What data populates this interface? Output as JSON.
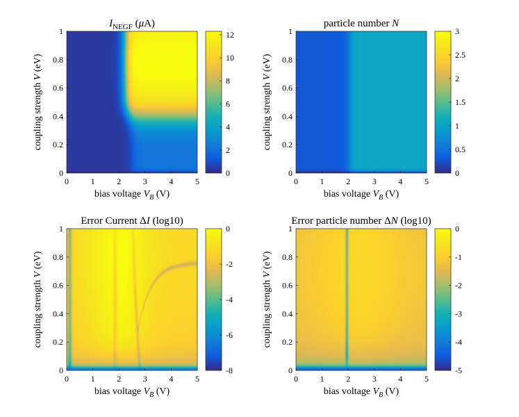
{
  "chart_data": [
    {
      "type": "heatmap",
      "title": "I_NEGF (μA)",
      "title_parts": {
        "main": "I",
        "sub": "NEGF",
        "rest": " (",
        "mu": "μ",
        "unit": "A)"
      },
      "xlabel": "bias voltage V_B (V)",
      "xlabel_parts": {
        "pre": "bias voltage ",
        "var": "V",
        "sub": "B",
        "post": " (V)"
      },
      "ylabel": "coupling strength V (eV)",
      "ylabel_parts": {
        "pre": "coupling strength ",
        "var": "V",
        "post": " (eV)"
      },
      "xlim": [
        0,
        5
      ],
      "ylim": [
        0,
        1
      ],
      "clim": [
        0,
        12.3
      ],
      "xticks": [
        "0",
        "1",
        "2",
        "3",
        "4",
        "5"
      ],
      "yticks": [
        "0",
        "0.2",
        "0.4",
        "0.6",
        "0.8",
        "1"
      ],
      "colorbar_ticks": [
        {
          "v": 0,
          "label": "0"
        },
        {
          "v": 2,
          "label": "2"
        },
        {
          "v": 4,
          "label": "4"
        },
        {
          "v": 6,
          "label": "6"
        },
        {
          "v": 8,
          "label": "8"
        },
        {
          "v": 10,
          "label": "10"
        },
        {
          "v": 12,
          "label": "12"
        }
      ],
      "colormap": "parula"
    },
    {
      "type": "heatmap",
      "title": "particle number N",
      "title_parts": {
        "pre": "particle number ",
        "var": "N"
      },
      "xlabel": "bias voltage V_B (V)",
      "xlabel_parts": {
        "pre": "bias voltage ",
        "var": "V",
        "sub": "B",
        "post": " (V)"
      },
      "ylabel": "coupling strength V (eV)",
      "ylabel_parts": {
        "pre": "coupling strength ",
        "var": "V",
        "post": " (eV)"
      },
      "xlim": [
        0,
        5
      ],
      "ylim": [
        0,
        1
      ],
      "clim": [
        0,
        3
      ],
      "xticks": [
        "0",
        "1",
        "2",
        "3",
        "4",
        "5"
      ],
      "yticks": [
        "0",
        "0.2",
        "0.4",
        "0.6",
        "0.8",
        "1"
      ],
      "colorbar_ticks": [
        {
          "v": 0,
          "label": "0"
        },
        {
          "v": 0.5,
          "label": "0.5"
        },
        {
          "v": 1,
          "label": "1"
        },
        {
          "v": 1.5,
          "label": "1.5"
        },
        {
          "v": 2,
          "label": "2"
        },
        {
          "v": 2.5,
          "label": "2.5"
        },
        {
          "v": 3,
          "label": "3"
        }
      ],
      "colormap": "parula"
    },
    {
      "type": "heatmap",
      "title": "Error Current ΔI (log10)",
      "title_parts": {
        "pre": "Error Current Δ",
        "var": "I",
        "post": " (log10)"
      },
      "xlabel": "bias voltage V_B (V)",
      "xlabel_parts": {
        "pre": "bias voltage ",
        "var": "V",
        "sub": "B",
        "post": " (V)"
      },
      "ylabel": "coupling strength V (eV)",
      "ylabel_parts": {
        "pre": "coupling strength ",
        "var": "V",
        "post": " (eV)"
      },
      "xlim": [
        0,
        5
      ],
      "ylim": [
        0,
        1
      ],
      "clim": [
        -8,
        0
      ],
      "xticks": [
        "0",
        "1",
        "2",
        "3",
        "4",
        "5"
      ],
      "yticks": [
        "0",
        "0.2",
        "0.4",
        "0.6",
        "0.8",
        "1"
      ],
      "colorbar_ticks": [
        {
          "v": 0,
          "label": "0"
        },
        {
          "v": -2,
          "label": "-2"
        },
        {
          "v": -4,
          "label": "-4"
        },
        {
          "v": -6,
          "label": "-6"
        },
        {
          "v": -8,
          "label": "-8"
        }
      ],
      "colormap": "parula"
    },
    {
      "type": "heatmap",
      "title": "Error particle number ΔN (log10)",
      "title_parts": {
        "pre": "Error particle number Δ",
        "var": "N",
        "post": " (log10)"
      },
      "xlabel": "bias voltage V_B (V)",
      "xlabel_parts": {
        "pre": "bias voltage ",
        "var": "V",
        "sub": "B",
        "post": " (V)"
      },
      "ylabel": "coupling strength V (eV)",
      "ylabel_parts": {
        "pre": "coupling strength ",
        "var": "V",
        "post": " (eV)"
      },
      "xlim": [
        0,
        5
      ],
      "ylim": [
        0,
        1
      ],
      "clim": [
        -5,
        0
      ],
      "xticks": [
        "0",
        "1",
        "2",
        "3",
        "4",
        "5"
      ],
      "yticks": [
        "0",
        "0.2",
        "0.4",
        "0.6",
        "0.8",
        "1"
      ],
      "colorbar_ticks": [
        {
          "v": 0,
          "label": "0"
        },
        {
          "v": -1,
          "label": "-1"
        },
        {
          "v": -2,
          "label": "-2"
        },
        {
          "v": -3,
          "label": "-3"
        },
        {
          "v": -4,
          "label": "-4"
        },
        {
          "v": -5,
          "label": "-5"
        }
      ],
      "colormap": "parula"
    }
  ]
}
